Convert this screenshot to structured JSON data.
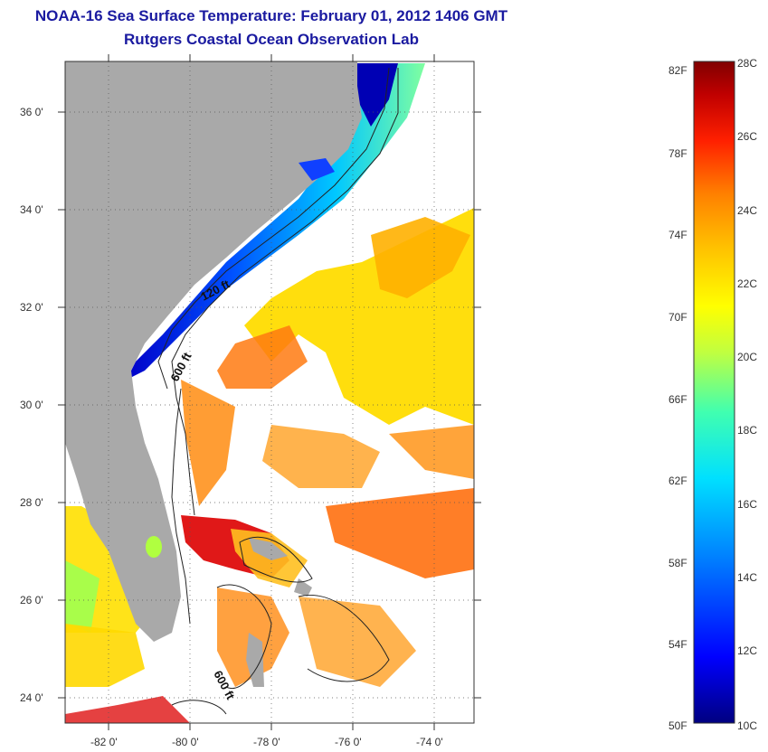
{
  "title": "NOAA-16 Sea Surface Temperature:  February 01, 2012 1406 GMT",
  "subtitle": "Rutgers Coastal Ocean Observation Lab",
  "map": {
    "lat_labels": [
      "36 0'",
      "34 0'",
      "32 0'",
      "30 0'",
      "28 0'",
      "26 0'",
      "24 0'"
    ],
    "lon_labels": [
      "-82 0'",
      "-80 0'",
      "-78 0'",
      "-76 0'",
      "-74 0'"
    ],
    "lat_range": [
      23,
      37
    ],
    "lon_range": [
      -83,
      -73
    ],
    "contours": [
      "120 ft",
      "600 ft",
      "600 ft"
    ]
  },
  "colorbar": {
    "fahrenheit_labels": [
      "82F",
      "78F",
      "74F",
      "70F",
      "66F",
      "62F",
      "58F",
      "54F",
      "50F"
    ],
    "celsius_labels": [
      "28C",
      "26C",
      "24C",
      "22C",
      "20C",
      "18C",
      "16C",
      "14C",
      "12C",
      "10C"
    ],
    "range_c": [
      10,
      28
    ],
    "colors": [
      "#000080",
      "#0000ff",
      "#0080ff",
      "#00e0ff",
      "#40ffb0",
      "#c0ff40",
      "#ffff00",
      "#ffc000",
      "#ff8000",
      "#ff2000",
      "#c00000",
      "#800000"
    ]
  },
  "colors": {
    "land": "#a9a9a9",
    "title": "#1a1aa0"
  }
}
